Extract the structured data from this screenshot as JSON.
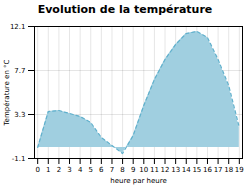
{
  "chart_data": {
    "type": "area",
    "title": "Evolution de la température",
    "xlabel": "heure par heure",
    "ylabel": "Température en °C",
    "x": [
      0,
      1,
      2,
      3,
      4,
      5,
      6,
      7,
      8,
      9,
      10,
      11,
      12,
      13,
      14,
      15,
      16,
      17,
      18,
      19
    ],
    "values": [
      0.0,
      3.6,
      3.7,
      3.4,
      3.1,
      2.5,
      1.0,
      0.2,
      -0.6,
      1.2,
      4.2,
      6.8,
      8.8,
      10.3,
      11.4,
      11.6,
      11.0,
      8.8,
      6.2,
      2.0
    ],
    "colors": [
      "#a0cfe0",
      "#60b0cc"
    ],
    "line_style": "dashed",
    "xlim": [
      -0.3,
      19.3
    ],
    "xticks": [
      0,
      1,
      2,
      3,
      4,
      5,
      6,
      7,
      8,
      9,
      10,
      11,
      12,
      13,
      14,
      15,
      16,
      17,
      18,
      19
    ],
    "ylim": [
      -1.1,
      12.1
    ],
    "yticks": [
      -1.1,
      3.3,
      7.7,
      12.1
    ],
    "grid": true
  }
}
